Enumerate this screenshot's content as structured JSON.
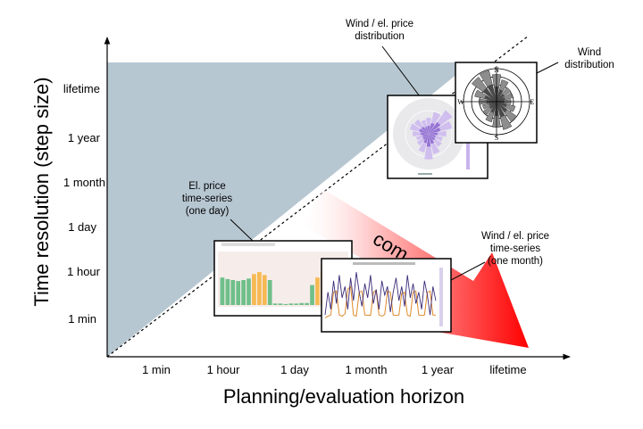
{
  "axes": {
    "x_title": "Planning/evaluation horizon",
    "y_title": "Time resolution (step size)",
    "x_ticks": [
      "1 min",
      "1 hour",
      "1 day",
      "1 month",
      "1 year",
      "lifetime"
    ],
    "y_ticks": [
      "lifetime",
      "1 year",
      "1 month",
      "1 day",
      "1 hour",
      "1 min"
    ]
  },
  "arrow": {
    "label": "com"
  },
  "callouts": {
    "wind_price_distribution": [
      "Wind / el. price",
      "distribution"
    ],
    "wind_distribution": [
      "Wind",
      "distribution"
    ],
    "price_day": [
      "El. price",
      "time-series",
      "(one day)"
    ],
    "price_month": [
      "Wind / el. price",
      "time-series",
      "(one month)"
    ]
  },
  "compass": {
    "n": "N",
    "s": "S",
    "e": "E",
    "w": "W"
  },
  "colors": {
    "shaded_region": "#b7c7d2",
    "arrow_light": "#ffe6e6",
    "arrow_dark": "#ff0000",
    "bar_green": "#6fbf8a",
    "bar_orange": "#f6b953",
    "rose_purple": "#a98bd9",
    "line_purple": "#3b2a78",
    "line_orange": "#e08a2a"
  },
  "insets": {
    "price_day_chart": {
      "type": "bar",
      "values": [
        0.55,
        0.52,
        0.5,
        0.48,
        0.5,
        0.53,
        0.62,
        0.66,
        0.6,
        0.5,
        0.03,
        0.03,
        0.02,
        0.03,
        0.03,
        0.04,
        0.04,
        0.4,
        0.55,
        0.68,
        0.82,
        0.76,
        0.6,
        0.5
      ],
      "highlight": [
        false,
        false,
        false,
        false,
        false,
        false,
        true,
        true,
        true,
        false,
        false,
        false,
        false,
        false,
        false,
        false,
        false,
        false,
        true,
        true,
        true,
        true,
        true,
        false
      ]
    },
    "price_month_chart": {
      "type": "line",
      "series_a": [
        0.2,
        0.6,
        0.3,
        0.8,
        0.4,
        0.9,
        0.5,
        0.7,
        0.3,
        0.85,
        0.45,
        0.95,
        0.6,
        0.35,
        0.75,
        0.5,
        0.9,
        0.4,
        0.65,
        0.3,
        0.8,
        0.55,
        0.7,
        0.25,
        0.6,
        0.85,
        0.45,
        0.7,
        0.35,
        0.9,
        0.5,
        0.75,
        0.4,
        0.6,
        0.3,
        0.8,
        0.55,
        0.2,
        0.7,
        0.45
      ],
      "series_b": [
        0.15,
        0.18,
        0.2,
        0.6,
        0.62,
        0.2,
        0.18,
        0.22,
        0.65,
        0.7,
        0.2,
        0.18,
        0.6,
        0.62,
        0.2,
        0.2,
        0.19,
        0.6,
        0.63,
        0.2,
        0.18,
        0.21,
        0.62,
        0.6,
        0.2,
        0.19,
        0.2,
        0.58,
        0.6,
        0.2,
        0.18,
        0.6,
        0.62,
        0.2,
        0.19,
        0.2,
        0.6,
        0.62,
        0.2,
        0.2
      ]
    },
    "wind_rose": {
      "sectors": [
        0.85,
        0.7,
        0.55,
        0.5,
        0.45,
        0.6,
        0.75,
        0.9,
        0.8,
        0.65,
        0.5,
        0.45,
        0.55,
        0.7,
        0.95,
        1.0
      ]
    },
    "price_rose": {
      "sectors": [
        0.5,
        0.7,
        0.9,
        0.75,
        0.55,
        0.45,
        0.5,
        0.65,
        0.8,
        0.6,
        0.45,
        0.4,
        0.5,
        0.6,
        0.55,
        0.45
      ]
    }
  }
}
